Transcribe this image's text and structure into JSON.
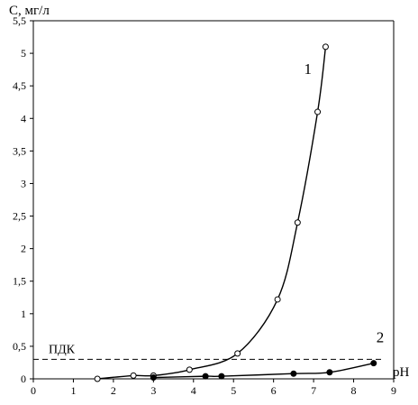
{
  "chart_data": {
    "type": "line",
    "ylabel": "С, мг/л",
    "xlabel": "pH",
    "xlim": [
      0,
      9
    ],
    "ylim": [
      0,
      5.5
    ],
    "x_ticks": [
      0,
      1,
      2,
      3,
      4,
      5,
      6,
      7,
      8,
      9
    ],
    "y_ticks": [
      "0",
      "0,5",
      "1",
      "1,5",
      "2",
      "2,5",
      "3",
      "3,5",
      "4",
      "4,5",
      "5",
      "5,5"
    ],
    "reference_line": {
      "label": "ПДК",
      "y": 0.3,
      "style": "dashed"
    },
    "series": [
      {
        "name": "1",
        "marker": "open-circle",
        "x": [
          1.6,
          2.5,
          3.0,
          3.9,
          5.1,
          6.1,
          6.6,
          7.1,
          7.3
        ],
        "y": [
          0.0,
          0.05,
          0.05,
          0.14,
          0.39,
          1.22,
          2.4,
          4.1,
          5.1
        ]
      },
      {
        "name": "2",
        "marker": "filled-circle",
        "x": [
          3.0,
          4.3,
          4.7,
          6.5,
          7.4,
          8.5
        ],
        "y": [
          0.02,
          0.04,
          0.04,
          0.08,
          0.1,
          0.24
        ]
      }
    ]
  }
}
